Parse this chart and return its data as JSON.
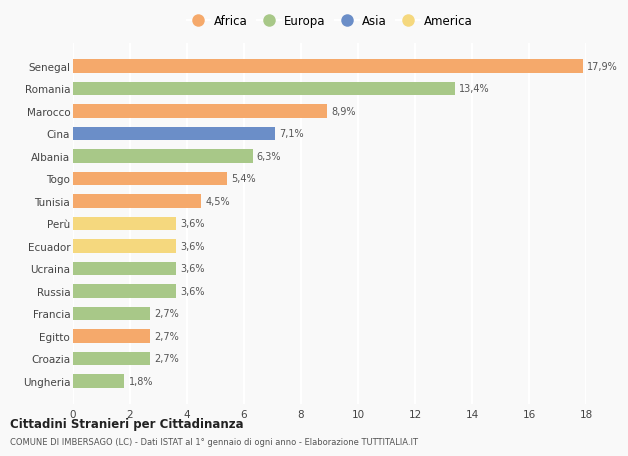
{
  "countries": [
    "Senegal",
    "Romania",
    "Marocco",
    "Cina",
    "Albania",
    "Togo",
    "Tunisia",
    "Perù",
    "Ecuador",
    "Ucraina",
    "Russia",
    "Francia",
    "Egitto",
    "Croazia",
    "Ungheria"
  ],
  "values": [
    17.9,
    13.4,
    8.9,
    7.1,
    6.3,
    5.4,
    4.5,
    3.6,
    3.6,
    3.6,
    3.6,
    2.7,
    2.7,
    2.7,
    1.8
  ],
  "continents": [
    "Africa",
    "Europa",
    "Africa",
    "Asia",
    "Europa",
    "Africa",
    "Africa",
    "America",
    "America",
    "Europa",
    "Europa",
    "Europa",
    "Africa",
    "Europa",
    "Europa"
  ],
  "labels": [
    "17,9%",
    "13,4%",
    "8,9%",
    "7,1%",
    "6,3%",
    "5,4%",
    "4,5%",
    "3,6%",
    "3,6%",
    "3,6%",
    "3,6%",
    "2,7%",
    "2,7%",
    "2,7%",
    "1,8%"
  ],
  "colors": {
    "Africa": "#F5A96B",
    "Europa": "#A8C888",
    "Asia": "#6B8EC8",
    "America": "#F5D87E"
  },
  "legend_order": [
    "Africa",
    "Europa",
    "Asia",
    "America"
  ],
  "xlim": [
    0,
    18
  ],
  "xticks": [
    0,
    2,
    4,
    6,
    8,
    10,
    12,
    14,
    16,
    18
  ],
  "title": "Cittadini Stranieri per Cittadinanza",
  "subtitle": "COMUNE DI IMBERSAGO (LC) - Dati ISTAT al 1° gennaio di ogni anno - Elaborazione TUTTITALIA.IT",
  "bg_color": "#f9f9f9",
  "grid_color": "#ffffff"
}
